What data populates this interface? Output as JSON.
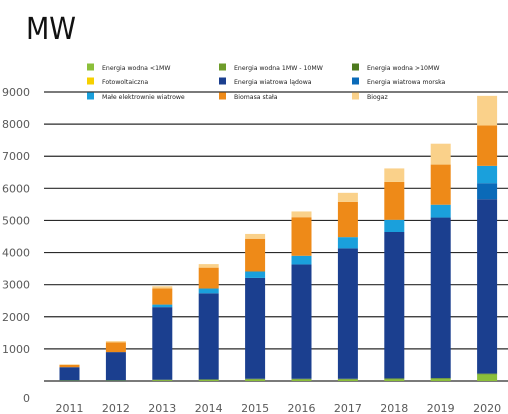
{
  "chart_data": {
    "type": "bar",
    "stacked": true,
    "title": "MW",
    "xlabel": "",
    "ylabel": "",
    "ylim": [
      0,
      9000
    ],
    "yticks": [
      0,
      1000,
      2000,
      3000,
      4000,
      5000,
      6000,
      7000,
      8000,
      9000
    ],
    "grid": true,
    "legend_position": "top",
    "categories": [
      "2011",
      "2012",
      "2013",
      "2014",
      "2015",
      "2016",
      "2017",
      "2018",
      "2019",
      "2020"
    ],
    "series": [
      {
        "name": "Energia wodna <1MW",
        "color": "#8bbf3a",
        "values": [
          10,
          10,
          20,
          30,
          40,
          40,
          40,
          50,
          60,
          200
        ]
      },
      {
        "name": "Energia wodna 1MW - 10MW",
        "color": "#6e9c2a",
        "values": [
          10,
          10,
          20,
          20,
          30,
          30,
          30,
          30,
          30,
          30
        ]
      },
      {
        "name": "Energia wodna >10MW",
        "color": "#4d7a1e",
        "values": [
          0,
          0,
          0,
          0,
          0,
          0,
          0,
          0,
          0,
          0
        ]
      },
      {
        "name": "Fotowoltaiczna",
        "color": "#f6d000",
        "values": [
          0,
          0,
          0,
          0,
          0,
          0,
          0,
          0,
          0,
          0
        ]
      },
      {
        "name": "Energia wiatrowa lądowa",
        "color": "#1b3f8f",
        "values": [
          410,
          880,
          2260,
          2680,
          3140,
          3560,
          4060,
          4560,
          5000,
          5430
        ]
      },
      {
        "name": "Energia wiatrowa morska",
        "color": "#0a6ab8",
        "values": [
          0,
          0,
          0,
          0,
          0,
          0,
          0,
          0,
          0,
          500
        ]
      },
      {
        "name": "Małe elektrownie wiatrowe",
        "color": "#1aa0dc",
        "values": [
          0,
          0,
          80,
          150,
          200,
          270,
          350,
          380,
          400,
          540
        ]
      },
      {
        "name": "Biomasa stała",
        "color": "#ee8a18",
        "values": [
          70,
          300,
          500,
          650,
          1020,
          1200,
          1100,
          1180,
          1250,
          1260
        ]
      },
      {
        "name": "Biogaz",
        "color": "#fad18a",
        "values": [
          20,
          40,
          70,
          110,
          150,
          180,
          280,
          420,
          650,
          920
        ]
      }
    ]
  }
}
